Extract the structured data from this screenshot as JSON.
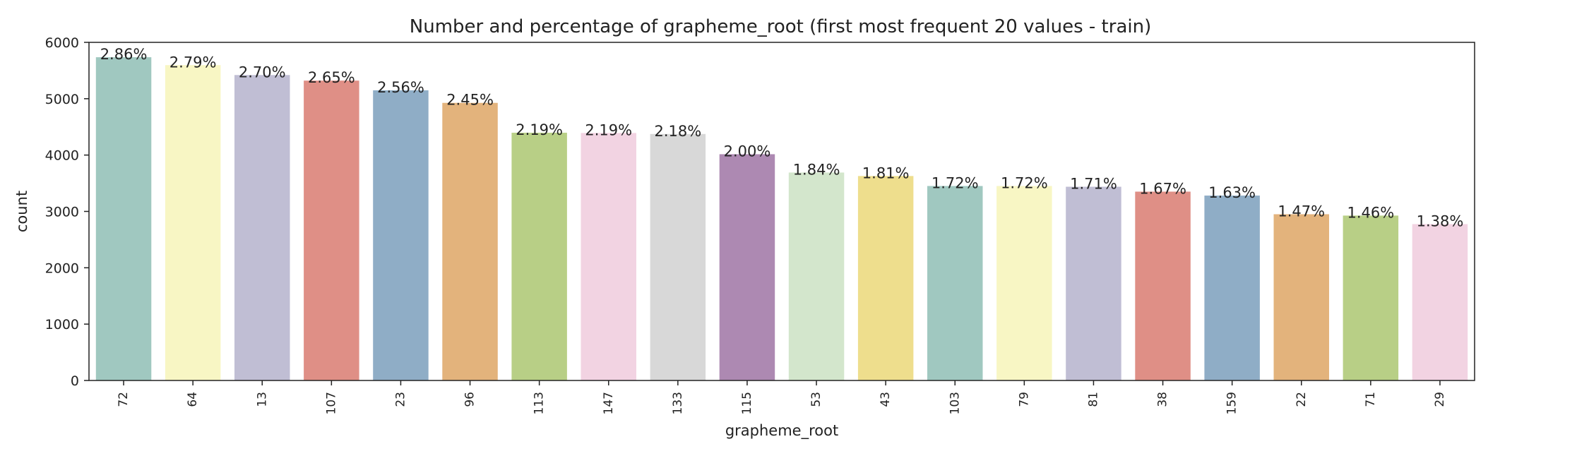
{
  "chart_data": {
    "type": "bar",
    "title": "Number and percentage of grapheme_root (first most frequent 20 values - train)",
    "xlabel": "grapheme_root",
    "ylabel": "count",
    "ylim": [
      0,
      6000
    ],
    "yticks": [
      0,
      1000,
      2000,
      3000,
      4000,
      5000,
      6000
    ],
    "grid": false,
    "categories": [
      "72",
      "64",
      "13",
      "107",
      "23",
      "96",
      "113",
      "147",
      "133",
      "115",
      "53",
      "43",
      "103",
      "79",
      "81",
      "38",
      "159",
      "22",
      "71",
      "29"
    ],
    "values": [
      5736,
      5596,
      5420,
      5321,
      5149,
      4926,
      4396,
      4392,
      4374,
      4015,
      3690,
      3628,
      3451,
      3451,
      3438,
      3351,
      3281,
      2950,
      2926,
      2775
    ],
    "labels": [
      "2.86%",
      "2.79%",
      "2.70%",
      "2.65%",
      "2.56%",
      "2.45%",
      "2.19%",
      "2.19%",
      "2.18%",
      "2.00%",
      "1.84%",
      "1.81%",
      "1.72%",
      "1.72%",
      "1.71%",
      "1.67%",
      "1.63%",
      "1.47%",
      "1.46%",
      "1.38%"
    ],
    "colors": [
      "#a0c8c0",
      "#f8f6c4",
      "#c0bed4",
      "#df8f86",
      "#8fadc6",
      "#e3b37c",
      "#b8cf86",
      "#f2d3e2",
      "#d8d8d8",
      "#ad89b2",
      "#d3e6cc",
      "#eede8d",
      "#a0c8c0",
      "#f8f6c4",
      "#c0bed4",
      "#df8f86",
      "#8fadc6",
      "#e3b37c",
      "#b8cf86",
      "#f2d3e2"
    ]
  }
}
